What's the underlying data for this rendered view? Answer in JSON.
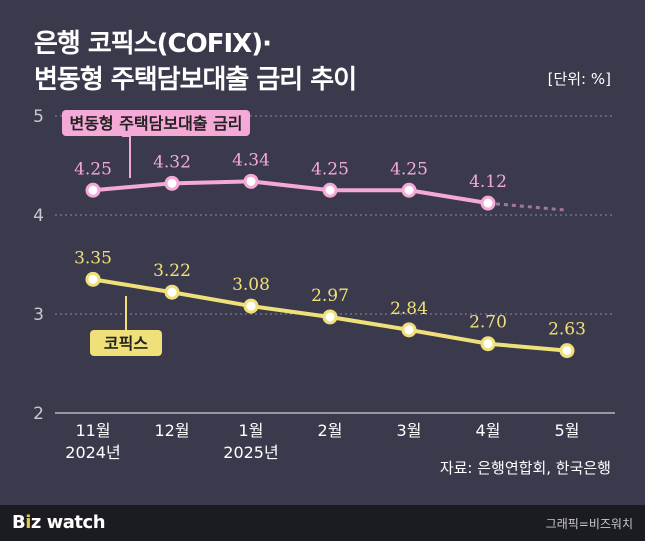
{
  "title_line1": "은행 코픽스(COFIX)·",
  "title_line2": "변동형 주택담보대출 금리 추이",
  "unit": "[단위: %]",
  "source": "자료: 은행연합회, 한국은행",
  "footer": {
    "logo_b": "B",
    "logo_i": "i",
    "logo_z": "z",
    "logo_watch": " watch",
    "credit": "그래픽=비즈워치"
  },
  "colors": {
    "mortgage": "#f4a9d6",
    "cofix": "#f0e07a",
    "background": "#3a3a4c",
    "grid": "#8a8a9a"
  },
  "chart_data": {
    "type": "line",
    "categories": [
      "11월",
      "12월",
      "1월",
      "2월",
      "3월",
      "4월",
      "5월"
    ],
    "category_sublabels": [
      "2024년",
      "",
      "2025년",
      "",
      "",
      "",
      ""
    ],
    "ylim": [
      2,
      5
    ],
    "yticks": [
      2,
      3,
      4,
      5
    ],
    "grid": true,
    "series": [
      {
        "name": "변동형 주택담보대출 금리",
        "key": "mortgage",
        "values": [
          4.25,
          4.32,
          4.34,
          4.25,
          4.25,
          4.12,
          null
        ],
        "labels": [
          "4.25",
          "4.32",
          "4.34",
          "4.25",
          "4.25",
          "4.12",
          ""
        ],
        "trailing_dashed": true
      },
      {
        "name": "코픽스",
        "key": "cofix",
        "values": [
          3.35,
          3.22,
          3.08,
          2.97,
          2.84,
          2.7,
          2.63
        ],
        "labels": [
          "3.35",
          "3.22",
          "3.08",
          "2.97",
          "2.84",
          "2.70",
          "2.63"
        ]
      }
    ]
  }
}
